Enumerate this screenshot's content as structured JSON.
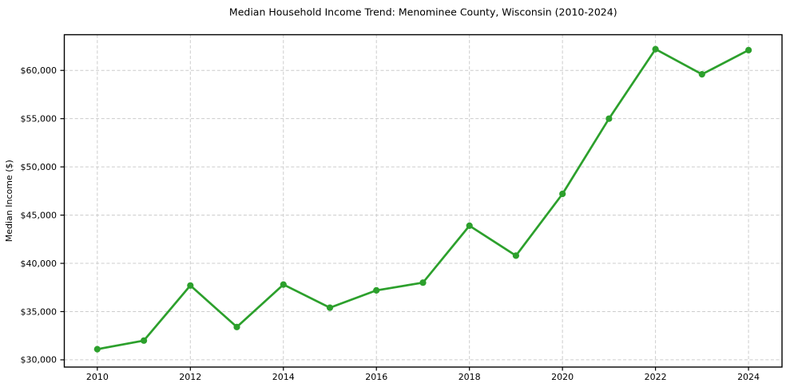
{
  "chart": {
    "title": "Median Household Income Trend: Menominee County, Wisconsin (2010-2024)",
    "y_axis_label": "Median Income ($)"
  },
  "chart_data": {
    "type": "line",
    "title": "Median Household Income Trend: Menominee County, Wisconsin (2010-2024)",
    "xlabel": "",
    "ylabel": "Median Income ($)",
    "x": [
      2010,
      2011,
      2012,
      2013,
      2014,
      2015,
      2016,
      2017,
      2018,
      2019,
      2020,
      2021,
      2022,
      2023,
      2024
    ],
    "values": [
      31100,
      32000,
      37700,
      33400,
      37800,
      35400,
      37200,
      38000,
      43900,
      40800,
      47200,
      55000,
      62200,
      59600,
      62100
    ],
    "xticks": [
      2010,
      2012,
      2014,
      2016,
      2018,
      2020,
      2022,
      2024
    ],
    "yticks": [
      30000,
      35000,
      40000,
      45000,
      50000,
      55000,
      60000
    ],
    "ytick_labels": [
      "$30,000",
      "$35,000",
      "$40,000",
      "$45,000",
      "$50,000",
      "$55,000",
      "$60,000"
    ],
    "xlim": [
      2009.29,
      2024.72
    ],
    "ylim": [
      29250,
      63700
    ],
    "grid": true,
    "grid_linestyle": "dashed",
    "legend": false,
    "line_color": "#2ca02c",
    "marker": "circle",
    "marker_radius": 4.1,
    "background_color": "#ffffff",
    "grid_color": "#cccccc",
    "axis_color": "#000000"
  }
}
